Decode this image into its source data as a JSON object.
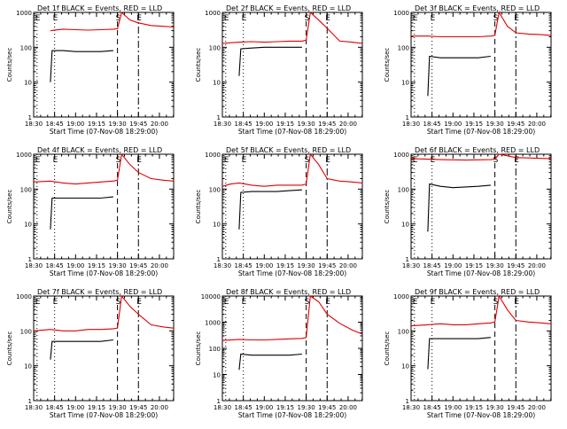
{
  "figure": {
    "background": "#ffffff",
    "series_colors": {
      "events": "#000000",
      "lld": "#e00000"
    }
  },
  "chart_data": [
    {
      "type": "line",
      "title": "Det 1f BLACK = Events, RED = LLD",
      "xlabel": "Start Time (07-Nov-08 18:29:00)",
      "ylabel": "Counts/sec",
      "xticks": [
        "18:30",
        "18:45",
        "19:00",
        "19:15",
        "19:30",
        "19:45",
        "20:00"
      ],
      "yticks": [
        "1",
        "10",
        "100",
        "1000"
      ],
      "ylim": [
        1,
        1000
      ],
      "yscale": "log",
      "xlim": [
        18.5,
        20.17
      ],
      "markers": [
        {
          "label": "E",
          "x": 18.54,
          "style": "dotted"
        },
        {
          "label": "E",
          "x": 18.75,
          "style": "dotted"
        },
        {
          "label": "S",
          "x": 19.5,
          "style": "dashed"
        },
        {
          "label": "E",
          "x": 19.75,
          "style": "dashdot"
        }
      ],
      "series": [
        {
          "x": [
            18.7,
            18.85,
            19.0,
            19.15,
            19.3,
            19.45,
            19.5,
            19.55,
            19.65,
            19.75,
            19.9,
            20.05,
            20.17
          ],
          "values": [
            300,
            330,
            320,
            310,
            320,
            330,
            340,
            1000,
            600,
            500,
            420,
            400,
            380
          ]
        },
        {
          "x": [
            18.7,
            18.72,
            18.85,
            19.0,
            19.15,
            19.3,
            19.45
          ],
          "values": [
            10,
            80,
            80,
            75,
            75,
            75,
            80
          ]
        }
      ]
    },
    {
      "type": "line",
      "title": "Det 2f BLACK = Events, RED = LLD",
      "xlabel": "Start Time (07-Nov-08 18:29:00)",
      "ylabel": "Counts/sec",
      "xticks": [
        "18:30",
        "18:45",
        "19:00",
        "19:15",
        "19:30",
        "19:45",
        "20:00"
      ],
      "yticks": [
        "1",
        "10",
        "100",
        "1000"
      ],
      "ylim": [
        1,
        1000
      ],
      "yscale": "log",
      "xlim": [
        18.5,
        20.17
      ],
      "markers": [
        {
          "label": "E",
          "x": 18.54,
          "style": "dotted"
        },
        {
          "label": "E",
          "x": 18.75,
          "style": "dotted"
        },
        {
          "label": "S",
          "x": 19.5,
          "style": "dashed"
        },
        {
          "label": "E",
          "x": 19.75,
          "style": "dashdot"
        }
      ],
      "series": [
        {
          "x": [
            18.5,
            18.7,
            18.85,
            19.0,
            19.15,
            19.3,
            19.45,
            19.5,
            19.55,
            19.65,
            19.75,
            19.9,
            20.05,
            20.17
          ],
          "values": [
            130,
            140,
            145,
            140,
            145,
            150,
            150,
            160,
            1000,
            600,
            350,
            150,
            140,
            130
          ]
        },
        {
          "x": [
            18.7,
            18.72,
            18.85,
            19.0,
            19.15,
            19.3,
            19.45
          ],
          "values": [
            15,
            90,
            95,
            100,
            100,
            100,
            100
          ]
        }
      ]
    },
    {
      "type": "line",
      "title": "Det 3f BLACK = Events, RED = LLD",
      "xlabel": "Start Time (07-Nov-08 18:29:00)",
      "ylabel": "Counts/sec",
      "xticks": [
        "18:30",
        "18:45",
        "19:00",
        "19:15",
        "19:30",
        "19:45",
        "20:00"
      ],
      "yticks": [
        "1",
        "10",
        "100",
        "1000"
      ],
      "ylim": [
        1,
        1000
      ],
      "yscale": "log",
      "xlim": [
        18.5,
        20.17
      ],
      "markers": [
        {
          "label": "E",
          "x": 18.54,
          "style": "dotted"
        },
        {
          "label": "E",
          "x": 18.75,
          "style": "dotted"
        },
        {
          "label": "S",
          "x": 19.5,
          "style": "dashed"
        },
        {
          "label": "E",
          "x": 19.75,
          "style": "dashdot"
        }
      ],
      "series": [
        {
          "x": [
            18.5,
            18.7,
            18.85,
            19.0,
            19.15,
            19.3,
            19.45,
            19.5,
            19.55,
            19.65,
            19.75,
            19.9,
            20.05,
            20.17
          ],
          "values": [
            210,
            210,
            200,
            200,
            200,
            200,
            210,
            220,
            1000,
            400,
            260,
            240,
            230,
            220
          ]
        },
        {
          "x": [
            18.7,
            18.72,
            18.85,
            19.0,
            19.15,
            19.3,
            19.45
          ],
          "values": [
            4,
            55,
            50,
            50,
            50,
            50,
            55
          ]
        }
      ]
    },
    {
      "type": "line",
      "title": "Det 4f BLACK = Events, RED = LLD",
      "xlabel": "Start Time (07-Nov-08 18:29:00)",
      "ylabel": "Counts/sec",
      "xticks": [
        "18:30",
        "18:45",
        "19:00",
        "19:15",
        "19:30",
        "19:45",
        "20:00"
      ],
      "yticks": [
        "1",
        "10",
        "100",
        "1000"
      ],
      "ylim": [
        1,
        1000
      ],
      "yscale": "log",
      "xlim": [
        18.5,
        20.17
      ],
      "markers": [
        {
          "label": "E",
          "x": 18.54,
          "style": "dotted"
        },
        {
          "label": "E",
          "x": 18.75,
          "style": "dotted"
        },
        {
          "label": "S",
          "x": 19.5,
          "style": "dashed"
        },
        {
          "label": "E",
          "x": 19.75,
          "style": "dashdot"
        }
      ],
      "series": [
        {
          "x": [
            18.5,
            18.7,
            18.85,
            19.0,
            19.15,
            19.3,
            19.45,
            19.5,
            19.55,
            19.65,
            19.75,
            19.9,
            20.05,
            20.17
          ],
          "values": [
            160,
            170,
            150,
            140,
            150,
            160,
            170,
            180,
            1000,
            500,
            300,
            200,
            180,
            170
          ]
        },
        {
          "x": [
            18.7,
            18.72,
            18.85,
            19.0,
            19.15,
            19.3,
            19.45
          ],
          "values": [
            7,
            55,
            55,
            55,
            55,
            55,
            60
          ]
        }
      ]
    },
    {
      "type": "line",
      "title": "Det 5f BLACK = Events, RED = LLD",
      "xlabel": "Start Time (07-Nov-08 18:29:00)",
      "ylabel": "Counts/sec",
      "xticks": [
        "18:30",
        "18:45",
        "19:00",
        "19:15",
        "19:30",
        "19:45",
        "20:00"
      ],
      "yticks": [
        "1",
        "10",
        "100",
        "1000"
      ],
      "ylim": [
        1,
        1000
      ],
      "yscale": "log",
      "xlim": [
        18.5,
        20.17
      ],
      "markers": [
        {
          "label": "E",
          "x": 18.54,
          "style": "dotted"
        },
        {
          "label": "E",
          "x": 18.75,
          "style": "dotted"
        },
        {
          "label": "S",
          "x": 19.5,
          "style": "dashed"
        },
        {
          "label": "E",
          "x": 19.75,
          "style": "dashdot"
        }
      ],
      "series": [
        {
          "x": [
            18.5,
            18.6,
            18.7,
            18.85,
            19.0,
            19.15,
            19.3,
            19.45,
            19.5,
            19.55,
            19.65,
            19.75,
            19.9,
            20.05,
            20.17
          ],
          "values": [
            120,
            140,
            150,
            130,
            120,
            130,
            130,
            130,
            140,
            1000,
            500,
            200,
            170,
            160,
            150
          ]
        },
        {
          "x": [
            18.7,
            18.72,
            18.85,
            19.0,
            19.15,
            19.3,
            19.45
          ],
          "values": [
            7,
            80,
            85,
            85,
            85,
            90,
            95
          ]
        }
      ]
    },
    {
      "type": "line",
      "title": "Det 6f BLACK = Events, RED = LLD",
      "xlabel": "Start Time (07-Nov-08 18:29:00)",
      "ylabel": "Counts/sec",
      "xticks": [
        "18:30",
        "18:45",
        "19:00",
        "19:15",
        "19:30",
        "19:45",
        "20:00"
      ],
      "yticks": [
        "1",
        "10",
        "100",
        "1000"
      ],
      "ylim": [
        1,
        1000
      ],
      "yscale": "log",
      "xlim": [
        18.5,
        20.17
      ],
      "markers": [
        {
          "label": "E",
          "x": 18.54,
          "style": "dotted"
        },
        {
          "label": "E",
          "x": 18.75,
          "style": "dotted"
        },
        {
          "label": "S",
          "x": 19.5,
          "style": "dashed"
        },
        {
          "label": "E",
          "x": 19.75,
          "style": "dashdot"
        }
      ],
      "series": [
        {
          "x": [
            18.5,
            18.7,
            18.85,
            19.0,
            19.15,
            19.3,
            19.45,
            19.5,
            19.55,
            19.65,
            19.75,
            19.9,
            20.05,
            20.17
          ],
          "values": [
            750,
            720,
            700,
            690,
            680,
            690,
            700,
            720,
            1000,
            900,
            800,
            780,
            760,
            750
          ]
        },
        {
          "x": [
            18.7,
            18.72,
            18.85,
            19.0,
            19.15,
            19.3,
            19.45
          ],
          "values": [
            6,
            140,
            120,
            110,
            115,
            120,
            130
          ]
        }
      ]
    },
    {
      "type": "line",
      "title": "Det 7f BLACK = Events, RED = LLD",
      "xlabel": "Start Time (07-Nov-08 18:29:00)",
      "ylabel": "Counts/sec",
      "xticks": [
        "18:30",
        "18:45",
        "19:00",
        "19:15",
        "19:30",
        "19:45",
        "20:00"
      ],
      "yticks": [
        "1",
        "10",
        "100",
        "1000"
      ],
      "ylim": [
        1,
        1000
      ],
      "yscale": "log",
      "xlim": [
        18.5,
        20.17
      ],
      "markers": [
        {
          "label": "E",
          "x": 18.54,
          "style": "dotted"
        },
        {
          "label": "E",
          "x": 18.75,
          "style": "dotted"
        },
        {
          "label": "S",
          "x": 19.5,
          "style": "dashed"
        },
        {
          "label": "E",
          "x": 19.75,
          "style": "dashdot"
        }
      ],
      "series": [
        {
          "x": [
            18.5,
            18.7,
            18.85,
            19.0,
            19.15,
            19.3,
            19.45,
            19.5,
            19.55,
            19.65,
            19.75,
            19.9,
            20.05,
            20.17
          ],
          "values": [
            100,
            110,
            100,
            100,
            110,
            110,
            115,
            120,
            1000,
            500,
            300,
            150,
            130,
            120
          ]
        },
        {
          "x": [
            18.7,
            18.72,
            18.85,
            19.0,
            19.15,
            19.3,
            19.45
          ],
          "values": [
            15,
            50,
            50,
            50,
            50,
            50,
            55
          ]
        }
      ]
    },
    {
      "type": "line",
      "title": "Det 8f BLACK = Events, RED = LLD",
      "xlabel": "Start Time (07-Nov-08 18:29:00)",
      "ylabel": "Counts/sec",
      "xticks": [
        "18:30",
        "18:45",
        "19:00",
        "19:15",
        "19:30",
        "19:45",
        "20:00"
      ],
      "yticks": [
        "1",
        "10",
        "100",
        "1000",
        "10000"
      ],
      "ylim": [
        1,
        10000
      ],
      "yscale": "log",
      "xlim": [
        18.5,
        20.17
      ],
      "markers": [
        {
          "label": "E",
          "x": 18.54,
          "style": "dotted"
        },
        {
          "label": "E",
          "x": 18.75,
          "style": "dotted"
        },
        {
          "label": "S",
          "x": 19.5,
          "style": "dashed"
        },
        {
          "label": "E",
          "x": 19.75,
          "style": "dashdot"
        }
      ],
      "series": [
        {
          "x": [
            18.5,
            18.7,
            18.85,
            19.0,
            19.15,
            19.3,
            19.45,
            19.5,
            19.55,
            19.65,
            19.75,
            19.9,
            20.05,
            20.17
          ],
          "values": [
            200,
            220,
            210,
            210,
            220,
            230,
            240,
            260,
            10000,
            6000,
            2000,
            900,
            500,
            350
          ]
        },
        {
          "x": [
            18.7,
            18.72,
            18.85,
            19.0,
            19.15,
            19.3,
            19.45
          ],
          "values": [
            15,
            60,
            55,
            55,
            55,
            55,
            60
          ]
        }
      ]
    },
    {
      "type": "line",
      "title": "Det 9f BLACK = Events, RED = LLD",
      "xlabel": "Start Time (07-Nov-08 18:29:00)",
      "ylabel": "Counts/sec",
      "xticks": [
        "18:30",
        "18:45",
        "19:00",
        "19:15",
        "19:30",
        "19:45",
        "20:00"
      ],
      "yticks": [
        "1",
        "10",
        "100",
        "1000"
      ],
      "ylim": [
        1,
        1000
      ],
      "yscale": "log",
      "xlim": [
        18.5,
        20.17
      ],
      "markers": [
        {
          "label": "E",
          "x": 18.54,
          "style": "dotted"
        },
        {
          "label": "E",
          "x": 18.75,
          "style": "dotted"
        },
        {
          "label": "S",
          "x": 19.5,
          "style": "dashed"
        },
        {
          "label": "E",
          "x": 19.75,
          "style": "dashdot"
        }
      ],
      "series": [
        {
          "x": [
            18.5,
            18.7,
            18.85,
            19.0,
            19.15,
            19.3,
            19.45,
            19.5,
            19.55,
            19.65,
            19.75,
            19.9,
            20.05,
            20.17
          ],
          "values": [
            140,
            150,
            160,
            150,
            150,
            160,
            170,
            180,
            1000,
            400,
            200,
            180,
            170,
            160
          ]
        },
        {
          "x": [
            18.7,
            18.72,
            18.85,
            19.0,
            19.15,
            19.3,
            19.45
          ],
          "values": [
            8,
            60,
            60,
            60,
            60,
            60,
            65
          ]
        }
      ]
    }
  ]
}
